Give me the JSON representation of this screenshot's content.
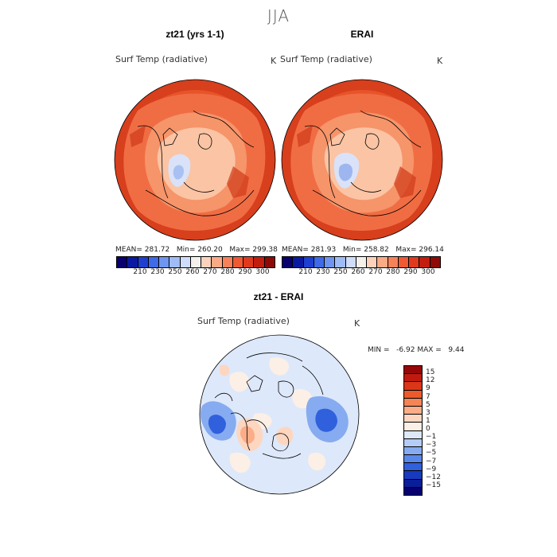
{
  "figure": {
    "season": "JJA"
  },
  "panels": {
    "model": {
      "title": "zt21 (yrs 1-1)",
      "variable": "Surf Temp (radiative)",
      "units": "K",
      "mean_label": "MEAN=",
      "mean": "281.72",
      "min_label": "Min=",
      "min": "260.20",
      "max_label": "Max=",
      "max": "299.38"
    },
    "obs": {
      "title": "ERAI",
      "variable": "Surf Temp (radiative)",
      "units": "K",
      "mean_label": "MEAN=",
      "mean": "281.93",
      "min_label": "Min=",
      "min": "258.82",
      "max_label": "Max=",
      "max": "296.14"
    },
    "diff": {
      "title": "zt21 - ERAI",
      "variable": "Surf Temp (radiative)",
      "units": "K",
      "min_label": "MIN =",
      "min": "-6.92",
      "max_label": "MAX =",
      "max": "9.44"
    }
  },
  "colorbars": {
    "abs": {
      "tick_labels": [
        "210",
        "230",
        "250",
        "260",
        "270",
        "280",
        "290",
        "300"
      ],
      "colors": [
        "#08006e",
        "#0a1aa0",
        "#1e3fd0",
        "#3f6ae8",
        "#6e96f0",
        "#a0bcf6",
        "#cfdcfa",
        "#f4f0ec",
        "#fcd2bc",
        "#fbaa86",
        "#f7825a",
        "#ef5a32",
        "#e03a1e",
        "#c21e0e",
        "#8e0a06"
      ]
    },
    "diff": {
      "tick_labels": [
        "15",
        "12",
        "9",
        "7",
        "5",
        "3",
        "1",
        "0",
        "−1",
        "−3",
        "−5",
        "−7",
        "−9",
        "−12",
        "−15"
      ],
      "colors": [
        "#960808",
        "#c01a10",
        "#dc3618",
        "#ee5a2c",
        "#f58456",
        "#fbad88",
        "#fdd6c0",
        "#fcefe6",
        "#dde8fa",
        "#b4cdf6",
        "#86abf0",
        "#5a88ea",
        "#3060dc",
        "#173abe",
        "#0a1e9a",
        "#060070"
      ]
    }
  },
  "chart_data": {
    "type": "heatmap",
    "maps": [
      {
        "title": "zt21 (yrs 1-1)",
        "variable": "Surf Temp (radiative)",
        "units": "K",
        "mean": 281.72,
        "min": 260.2,
        "max": 299.38,
        "projection": "polar stereographic (north)",
        "season": "JJA"
      },
      {
        "title": "ERAI",
        "variable": "Surf Temp (radiative)",
        "units": "K",
        "mean": 281.93,
        "min": 258.82,
        "max": 296.14,
        "projection": "polar stereographic (north)",
        "season": "JJA"
      },
      {
        "title": "zt21 - ERAI",
        "variable": "Surf Temp (radiative)",
        "units": "K",
        "min": -6.92,
        "max": 9.44,
        "projection": "polar stereographic (north)",
        "season": "JJA"
      }
    ],
    "abs_levels": [
      210,
      230,
      250,
      260,
      270,
      280,
      290,
      300
    ],
    "diff_levels": [
      15,
      12,
      9,
      7,
      5,
      3,
      1,
      0,
      -1,
      -3,
      -5,
      -7,
      -9,
      -12,
      -15
    ]
  }
}
